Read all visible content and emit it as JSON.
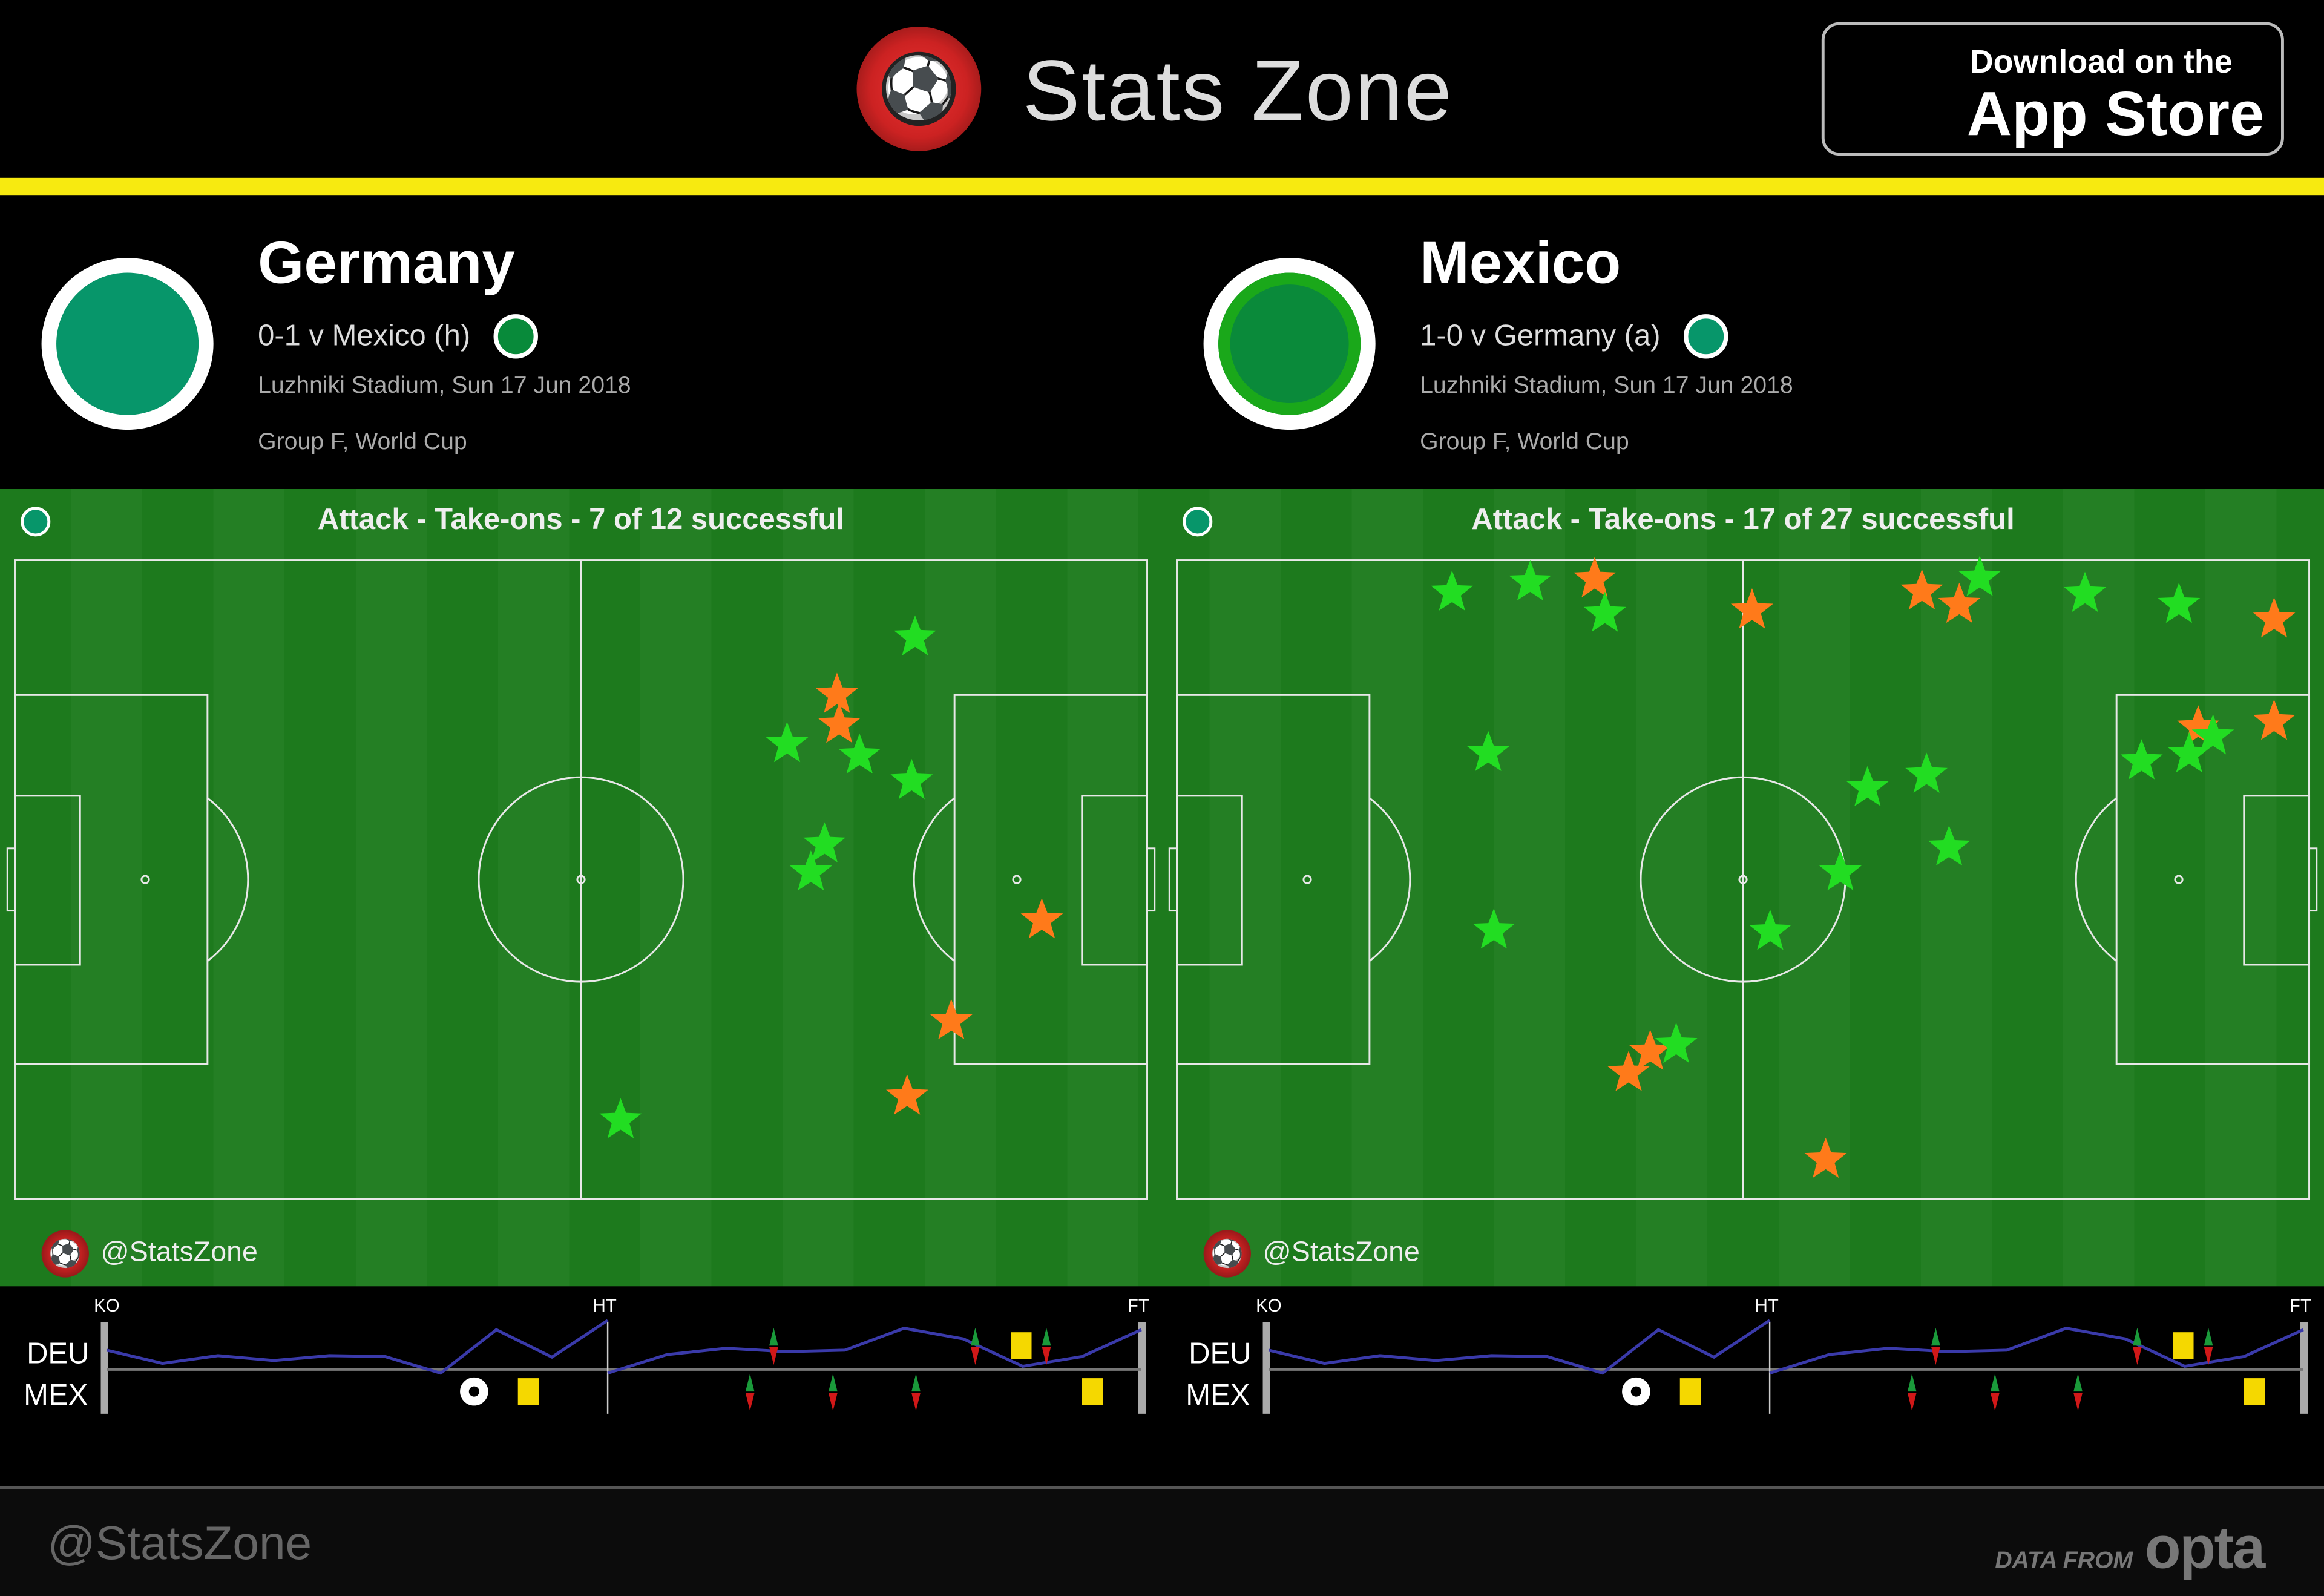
{
  "header": {
    "brand": "Stats Zone",
    "logo_icon": "soccer-ball-icon",
    "appstore": {
      "line1": "Download on the",
      "line2": "App Store",
      "icon": "apple-icon"
    }
  },
  "colors": {
    "accent": "#f7ea10",
    "success": "#22dd22",
    "fail": "#ff7a1a",
    "team": "#07966a",
    "momentum": "#3a3aaa",
    "yellow_card": "#f5d800"
  },
  "teams": [
    {
      "name": "Germany",
      "result": "0-1 v Mexico (h)",
      "venue": "Luzhniki Stadium, Sun 17 Jun 2018",
      "competition": "Group F, World Cup",
      "crest_color": "#07966a",
      "mini_color": "#088a3a"
    },
    {
      "name": "Mexico",
      "result": "1-0 v Germany (a)",
      "venue": "Luzhniki Stadium, Sun 17 Jun 2018",
      "competition": "Group F, World Cup",
      "crest_color": "#0a8a3a",
      "mini_color": "#07966a"
    }
  ],
  "panels": [
    {
      "title": "Attack - Take-ons - 7 of 12 successful",
      "handle": "@StatsZone",
      "success": [
        [
          79.5,
          12.1
        ],
        [
          68.2,
          28.8
        ],
        [
          74.6,
          30.6
        ],
        [
          79.2,
          34.6
        ],
        [
          71.5,
          44.5
        ],
        [
          70.3,
          48.9
        ],
        [
          53.5,
          87.7
        ]
      ],
      "fail": [
        [
          72.6,
          21.1
        ],
        [
          72.8,
          25.8
        ],
        [
          90.7,
          56.4
        ],
        [
          82.7,
          72.2
        ],
        [
          78.8,
          84.0
        ]
      ]
    },
    {
      "title": "Attack - Take-ons - 17 of 27 successful",
      "handle": "@StatsZone",
      "success": [
        [
          24.3,
          5.1
        ],
        [
          31.2,
          3.5
        ],
        [
          37.8,
          8.4
        ],
        [
          70.9,
          2.8
        ],
        [
          80.2,
          5.3
        ],
        [
          88.5,
          7.0
        ],
        [
          27.5,
          30.2
        ],
        [
          61.0,
          35.7
        ],
        [
          66.2,
          33.6
        ],
        [
          68.2,
          45.0
        ],
        [
          58.6,
          48.9
        ],
        [
          85.2,
          31.5
        ],
        [
          89.4,
          30.4
        ],
        [
          91.5,
          27.6
        ],
        [
          28.0,
          58.0
        ],
        [
          52.4,
          58.2
        ],
        [
          44.1,
          75.9
        ]
      ],
      "fail": [
        [
          36.9,
          3.0
        ],
        [
          50.8,
          7.9
        ],
        [
          65.8,
          4.9
        ],
        [
          69.1,
          7.0
        ],
        [
          96.9,
          9.3
        ],
        [
          90.2,
          26.2
        ],
        [
          96.9,
          25.3
        ],
        [
          41.8,
          77.0
        ],
        [
          39.9,
          80.3
        ],
        [
          57.3,
          93.9
        ]
      ]
    }
  ],
  "timeline": {
    "labels": {
      "ko": "KO",
      "ht": "HT",
      "ft": "FT",
      "home": "DEU",
      "away": "MEX"
    },
    "momentum": {
      "minutes": [
        0,
        5,
        10,
        15,
        20,
        25,
        30,
        35,
        40,
        45,
        45,
        50,
        55,
        60,
        65,
        70,
        75,
        80,
        85,
        90
      ],
      "values": [
        0.39,
        0.12,
        0.28,
        0.18,
        0.28,
        0.26,
        -0.08,
        0.81,
        0.25,
        1.0,
        -0.08,
        0.3,
        0.43,
        0.36,
        0.39,
        0.84,
        0.62,
        0.06,
        0.26,
        0.81
      ]
    },
    "events": [
      {
        "team": "MEX",
        "type": "goal",
        "minute": 33
      },
      {
        "team": "MEX",
        "type": "yellow",
        "minute": 38
      },
      {
        "team": "MEX",
        "type": "yellow",
        "minute": 86
      },
      {
        "team": "DEU",
        "type": "yellow",
        "minute": 80
      },
      {
        "team": "DEU",
        "type": "sub",
        "minute": 59
      },
      {
        "team": "DEU",
        "type": "sub",
        "minute": 76
      },
      {
        "team": "DEU",
        "type": "sub",
        "minute": 82
      },
      {
        "team": "MEX",
        "type": "sub",
        "minute": 57
      },
      {
        "team": "MEX",
        "type": "sub",
        "minute": 64
      },
      {
        "team": "MEX",
        "type": "sub",
        "minute": 71
      }
    ]
  },
  "footer": {
    "handle": "@StatsZone",
    "data_from": "DATA FROM",
    "provider": "opta"
  }
}
